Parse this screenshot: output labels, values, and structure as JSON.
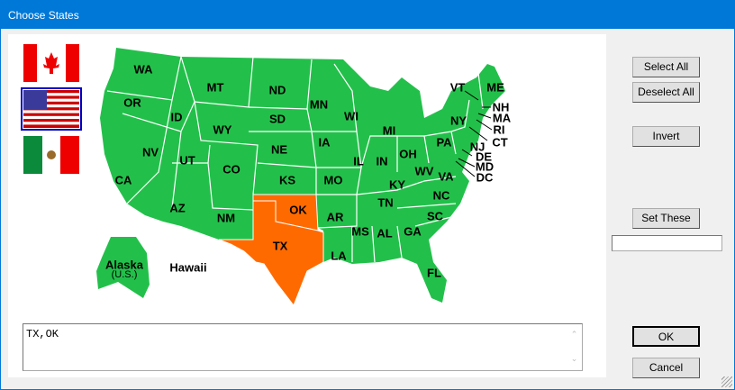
{
  "window": {
    "title": "Choose States"
  },
  "flags": [
    {
      "name": "canada",
      "selected": false
    },
    {
      "name": "usa",
      "selected": true
    },
    {
      "name": "mexico",
      "selected": false
    }
  ],
  "colors": {
    "selected": "#ff6a00",
    "unselected": "#22c04a",
    "titlebar": "#0078d7"
  },
  "map": {
    "selected_states": [
      "TX",
      "OK"
    ],
    "labels": {
      "WA": "WA",
      "OR": "OR",
      "CA": "CA",
      "ID": "ID",
      "NV": "NV",
      "MT": "MT",
      "WY": "WY",
      "UT": "UT",
      "AZ": "AZ",
      "CO": "CO",
      "NM": "NM",
      "ND": "ND",
      "SD": "SD",
      "NE": "NE",
      "KS": "KS",
      "OK": "OK",
      "TX": "TX",
      "MN": "MN",
      "IA": "IA",
      "MO": "MO",
      "AR": "AR",
      "LA": "LA",
      "WI": "WI",
      "IL": "IL",
      "MI": "MI",
      "IN": "IN",
      "OH": "OH",
      "KY": "KY",
      "TN": "TN",
      "MS": "MS",
      "AL": "AL",
      "GA": "GA",
      "FL": "FL",
      "SC": "SC",
      "NC": "NC",
      "VA": "VA",
      "WV": "WV",
      "PA": "PA",
      "NY": "NY",
      "VT": "VT",
      "ME": "ME",
      "NH": "NH",
      "MA": "MA",
      "RI": "RI",
      "CT": "CT",
      "NJ": "NJ",
      "DE": "DE",
      "MD": "MD",
      "DC": "DC",
      "AK": "Alaska",
      "AK_sub": "(U.S.)",
      "HI": "Hawaii"
    }
  },
  "buttons": {
    "select_all": "Select All",
    "deselect_all": "Deselect All",
    "invert": "Invert",
    "set_these": "Set These",
    "ok": "OK",
    "cancel": "Cancel"
  },
  "set_these_input": {
    "value": ""
  },
  "selection_text": {
    "value": "TX,OK"
  }
}
